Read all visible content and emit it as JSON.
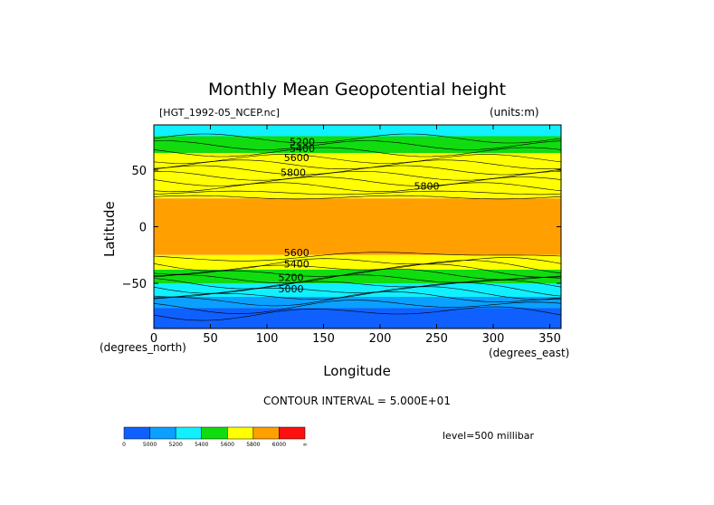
{
  "chart_data": {
    "type": "contour map (filled contours)",
    "title": "Monthly Mean Geopotential height",
    "source_file": "[HGT_1992-05_NCEP.nc]",
    "units": "(units:m)",
    "xlabel": "Longitude",
    "ylabel": "Latitude",
    "x_unit_label": "(degrees_east)",
    "y_unit_label": "(degrees_north)",
    "xlim": [
      0,
      360
    ],
    "ylim": [
      -90,
      90
    ],
    "x_ticks": [
      0,
      50,
      100,
      150,
      200,
      250,
      300,
      350
    ],
    "y_ticks": [
      -50,
      0,
      50
    ],
    "contour_interval_text": "CONTOUR INTERVAL = 5.000E+01",
    "level_text": "level=500 millibar",
    "contour_labels": [
      "5200",
      "5400",
      "5600",
      "5800",
      "5800",
      "5600",
      "5400",
      "5200",
      "5000"
    ],
    "colorbar": {
      "colors": [
        "#1060ff",
        "#0aa0ff",
        "#10f0ff",
        "#10dc10",
        "#ffff00",
        "#ffa000",
        "#ff1010"
      ],
      "tick_labels": [
        "0",
        "5000",
        "5200",
        "5400",
        "5600",
        "5800",
        "6000",
        "∞"
      ]
    },
    "bands": [
      {
        "lat_top": 90,
        "lat_bot": 80,
        "color": "#10f0ff"
      },
      {
        "lat_top": 80,
        "lat_bot": 65,
        "color": "#10dc10"
      },
      {
        "lat_top": 65,
        "lat_bot": 45,
        "color": "#ffff00"
      },
      {
        "lat_top": 45,
        "lat_bot": 25,
        "color": "#ffff00"
      },
      {
        "lat_top": 25,
        "lat_bot": -25,
        "color": "#ffa000"
      },
      {
        "lat_top": -25,
        "lat_bot": -38,
        "color": "#ffff00"
      },
      {
        "lat_top": -38,
        "lat_bot": -50,
        "color": "#10dc10"
      },
      {
        "lat_top": -50,
        "lat_bot": -62,
        "color": "#10f0ff"
      },
      {
        "lat_top": -62,
        "lat_bot": -72,
        "color": "#0aa0ff"
      },
      {
        "lat_top": -72,
        "lat_bot": -90,
        "color": "#1060ff"
      }
    ]
  }
}
